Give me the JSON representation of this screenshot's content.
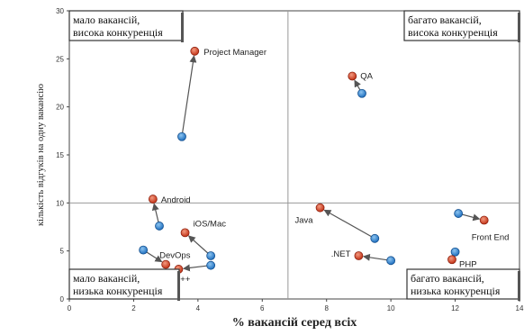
{
  "chart_data": {
    "type": "scatter",
    "xlabel": "% вакансій серед всіх",
    "ylabel": "кількість відгуків на одну вакансію",
    "xlim": [
      0,
      14
    ],
    "ylim": [
      0,
      30
    ],
    "xticks": [
      0,
      2,
      4,
      6,
      8,
      10,
      12,
      14
    ],
    "yticks": [
      0,
      5,
      10,
      15,
      20,
      25,
      30
    ],
    "divider": {
      "x": 6.8,
      "y": 10
    },
    "quadrants": [
      {
        "id": "top-left",
        "line1": "мало вакансій,",
        "line2": "висока конкуренція"
      },
      {
        "id": "top-right",
        "line1": "багато вакансій,",
        "line2": "висока конкуренція"
      },
      {
        "id": "bottom-left",
        "line1": "мало вакансій,",
        "line2": "низька конкуренція"
      },
      {
        "id": "bottom-right",
        "line1": "багато вакансій,",
        "line2": "низька конкуренція"
      }
    ],
    "colors": {
      "from": "#2f86d4",
      "to": "#d8432a",
      "arrow": "#555555",
      "divider": "#999999"
    },
    "points": [
      {
        "label": "Project Manager",
        "from": [
          3.5,
          16.9
        ],
        "to": [
          3.9,
          25.8
        ]
      },
      {
        "label": "QA",
        "from": [
          9.1,
          21.4
        ],
        "to": [
          8.8,
          23.2
        ]
      },
      {
        "label": "Android",
        "from": [
          2.8,
          7.6
        ],
        "to": [
          2.6,
          10.4
        ]
      },
      {
        "label": "iOS/Mac",
        "from": [
          4.4,
          4.5
        ],
        "to": [
          3.6,
          6.9
        ]
      },
      {
        "label": "DevOps",
        "from": [
          2.3,
          5.1
        ],
        "to": [
          3.0,
          3.6
        ]
      },
      {
        "label": "C++",
        "from": [
          4.4,
          3.5
        ],
        "to": [
          3.4,
          3.1
        ]
      },
      {
        "label": "Java",
        "from": [
          9.5,
          6.3
        ],
        "to": [
          7.8,
          9.5
        ]
      },
      {
        "label": ".NET",
        "from": [
          10.0,
          4.0
        ],
        "to": [
          9.0,
          4.5
        ]
      },
      {
        "label": "PHP",
        "from": [
          12.0,
          4.9
        ],
        "to": [
          11.9,
          4.1
        ]
      },
      {
        "label": "Front End",
        "from": [
          12.1,
          8.9
        ],
        "to": [
          12.9,
          8.2
        ]
      }
    ]
  }
}
